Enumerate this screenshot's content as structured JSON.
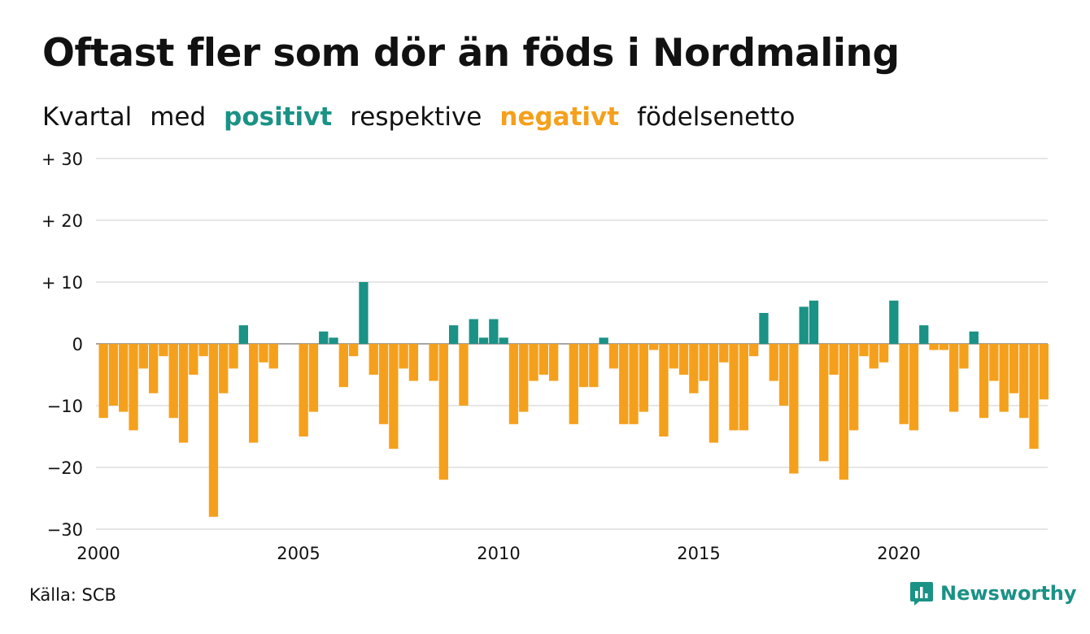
{
  "title": "Oftast fler som dör än föds i Nordmaling",
  "subtitle": {
    "part1": "Kvartal",
    "part2": "med",
    "positive": "positivt",
    "part3": "respektive",
    "negative": "negativt",
    "part4": "födelsenetto"
  },
  "colors": {
    "positive": "#1a9285",
    "negative": "#f5a01c",
    "gridline": "#dddddd",
    "text": "#111111"
  },
  "source": "Källa: SCB",
  "brand": {
    "name": "Newsworthy",
    "icon": "chart-logo-icon"
  },
  "chart_data": {
    "type": "bar",
    "title": "Oftast fler som dör än föds i Nordmaling",
    "ylim": [
      -30,
      30
    ],
    "y_ticks": [
      30,
      20,
      10,
      0,
      -10,
      -20,
      -30
    ],
    "y_tick_labels": [
      "+ 30",
      "+ 20",
      "+ 10",
      "0",
      "−10",
      "−20",
      "−30"
    ],
    "x_tick_labels": [
      "2000",
      "2005",
      "2010",
      "2015",
      "2020"
    ],
    "x_tick_years": [
      2000,
      2005,
      2010,
      2015,
      2020
    ],
    "first_quarter": "2000 Q1",
    "grid": true,
    "values": [
      -12,
      -10,
      -11,
      -14,
      -4,
      -8,
      -2,
      -12,
      -16,
      -5,
      -2,
      -28,
      -8,
      -4,
      3,
      -16,
      -3,
      -4,
      0,
      0,
      -15,
      -11,
      2,
      1,
      -7,
      -2,
      10,
      -5,
      -13,
      -17,
      -4,
      -6,
      0,
      -6,
      -22,
      3,
      -10,
      4,
      1,
      4,
      1,
      -13,
      -11,
      -6,
      -5,
      -6,
      0,
      -13,
      -7,
      -7,
      1,
      -4,
      -13,
      -13,
      -11,
      -1,
      -15,
      -4,
      -5,
      -8,
      -6,
      -16,
      -3,
      -14,
      -14,
      -2,
      5,
      -6,
      -10,
      -21,
      6,
      7,
      -19,
      -5,
      -22,
      -14,
      -2,
      -4,
      -3,
      7,
      -13,
      -14,
      3,
      -1,
      -1,
      -11,
      -4,
      2,
      -12,
      -6,
      -11,
      -8,
      -12,
      -17,
      -9
    ]
  }
}
